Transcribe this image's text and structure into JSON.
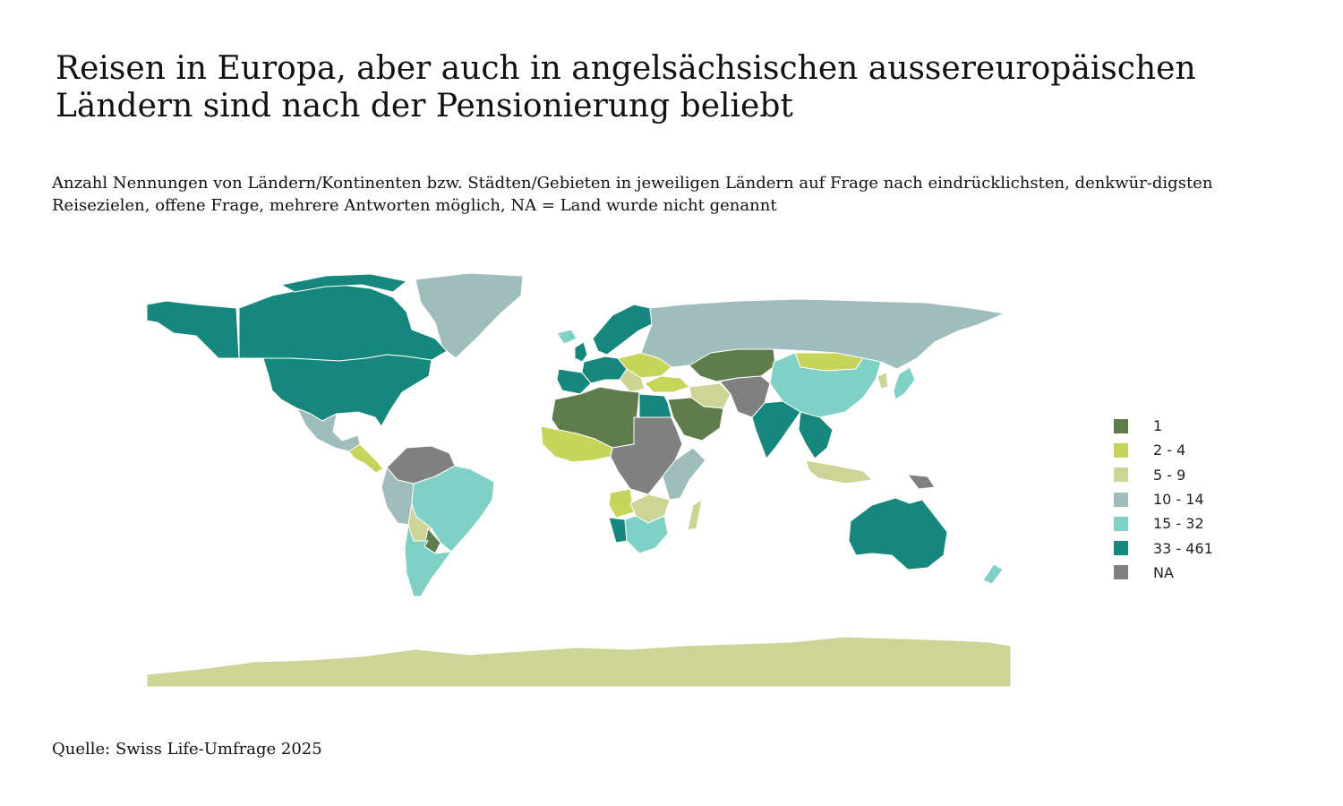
{
  "header": {
    "title": "Reisen in Europa, aber auch in angelsächsischen aussereuropäischen Ländern sind nach der Pensionierung beliebt",
    "subtitle": "Anzahl Nennungen von Ländern/Kontinenten bzw. Städten/Gebieten in jeweiligen Ländern auf Frage nach eindrücklichsten, denkwür-digsten Reisezielen, offene Frage, mehrere Antworten möglich, NA = Land wurde nicht genannt"
  },
  "legend": {
    "items": [
      {
        "label": "1",
        "color": "#5e7d4a"
      },
      {
        "label": "2 - 4",
        "color": "#c7d45a"
      },
      {
        "label": "5 - 9",
        "color": "#cdd495"
      },
      {
        "label": "10 - 14",
        "color": "#9fbdbd"
      },
      {
        "label": "15 - 32",
        "color": "#7fd0c5"
      },
      {
        "label": "33 - 461",
        "color": "#16877c"
      },
      {
        "label": "NA",
        "color": "#808080"
      }
    ]
  },
  "footer": {
    "source": "Quelle: Swiss Life-Umfrage 2025"
  }
}
